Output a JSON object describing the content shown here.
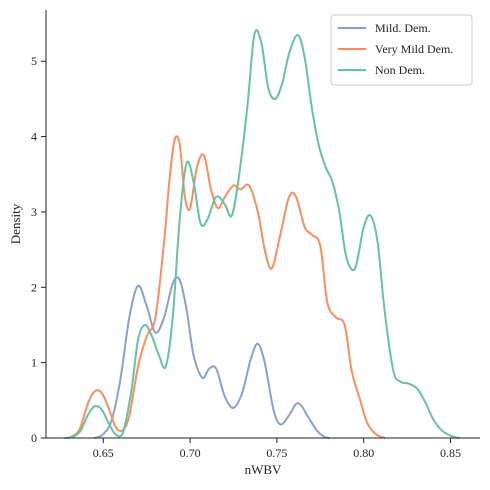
{
  "chart_data": {
    "type": "line",
    "title": "",
    "xlabel": "nWBV",
    "ylabel": "Density",
    "xlim": [
      0.617,
      0.867
    ],
    "ylim": [
      0,
      5.68
    ],
    "xticks": [
      0.65,
      0.7,
      0.75,
      0.8,
      0.85
    ],
    "xtick_labels": [
      "0.65",
      "0.70",
      "0.75",
      "0.80",
      "0.85"
    ],
    "yticks": [
      0,
      1,
      2,
      3,
      4,
      5
    ],
    "ytick_labels": [
      "0",
      "1",
      "2",
      "3",
      "4",
      "5"
    ],
    "grid": false,
    "legend_position": "top-right",
    "series": [
      {
        "name": "Mild. Dem.",
        "color": "#8da0cb",
        "x": [
          0.645,
          0.65,
          0.655,
          0.66,
          0.665,
          0.67,
          0.675,
          0.68,
          0.685,
          0.69,
          0.694,
          0.698,
          0.702,
          0.707,
          0.711,
          0.715,
          0.72,
          0.725,
          0.73,
          0.735,
          0.739,
          0.743,
          0.748,
          0.752,
          0.757,
          0.761,
          0.764,
          0.768,
          0.773,
          0.777,
          0.78
        ],
        "y": [
          0.0,
          0.05,
          0.25,
          0.8,
          1.6,
          2.02,
          1.75,
          1.4,
          1.6,
          2.05,
          2.1,
          1.7,
          1.1,
          0.8,
          0.92,
          0.92,
          0.55,
          0.4,
          0.6,
          1.05,
          1.25,
          1.0,
          0.38,
          0.18,
          0.3,
          0.45,
          0.43,
          0.28,
          0.1,
          0.02,
          0.0
        ]
      },
      {
        "name": "Very Mild Dem.",
        "color": "#fc8d62",
        "x": [
          0.63,
          0.636,
          0.641,
          0.645,
          0.649,
          0.653,
          0.657,
          0.661,
          0.665,
          0.67,
          0.675,
          0.68,
          0.685,
          0.688,
          0.691,
          0.694,
          0.697,
          0.7,
          0.704,
          0.708,
          0.712,
          0.716,
          0.72,
          0.725,
          0.729,
          0.734,
          0.739,
          0.743,
          0.747,
          0.752,
          0.757,
          0.761,
          0.766,
          0.77,
          0.775,
          0.779,
          0.784,
          0.789,
          0.793,
          0.798,
          0.802,
          0.807,
          0.812
        ],
        "y": [
          0.0,
          0.1,
          0.45,
          0.62,
          0.6,
          0.4,
          0.15,
          0.1,
          0.3,
          0.95,
          1.35,
          1.6,
          2.6,
          3.4,
          3.95,
          3.9,
          3.2,
          3.05,
          3.6,
          3.75,
          3.3,
          3.05,
          3.2,
          3.35,
          3.3,
          3.35,
          3.0,
          2.5,
          2.25,
          2.7,
          3.2,
          3.2,
          2.8,
          2.7,
          2.55,
          1.8,
          1.6,
          1.5,
          0.9,
          0.5,
          0.2,
          0.05,
          0.0
        ]
      },
      {
        "name": "Non Dem.",
        "color": "#66c2a5",
        "x": [
          0.628,
          0.633,
          0.637,
          0.641,
          0.645,
          0.649,
          0.653,
          0.657,
          0.661,
          0.666,
          0.67,
          0.674,
          0.678,
          0.682,
          0.686,
          0.69,
          0.694,
          0.698,
          0.702,
          0.706,
          0.71,
          0.715,
          0.72,
          0.724,
          0.728,
          0.733,
          0.737,
          0.741,
          0.745,
          0.749,
          0.753,
          0.757,
          0.762,
          0.766,
          0.77,
          0.774,
          0.778,
          0.782,
          0.786,
          0.79,
          0.795,
          0.8,
          0.804,
          0.808,
          0.812,
          0.817,
          0.821,
          0.826,
          0.831,
          0.836,
          0.84,
          0.845,
          0.85,
          0.855
        ],
        "y": [
          0.0,
          0.02,
          0.1,
          0.3,
          0.42,
          0.38,
          0.2,
          0.05,
          0.05,
          0.6,
          1.3,
          1.5,
          1.35,
          1.1,
          0.95,
          1.6,
          2.9,
          3.65,
          3.4,
          2.85,
          2.9,
          3.2,
          3.1,
          2.95,
          3.45,
          4.4,
          5.35,
          5.25,
          4.65,
          4.5,
          4.7,
          5.1,
          5.35,
          5.05,
          4.4,
          3.9,
          3.6,
          3.4,
          3.0,
          2.4,
          2.25,
          2.8,
          2.95,
          2.6,
          1.7,
          0.9,
          0.75,
          0.72,
          0.65,
          0.45,
          0.25,
          0.1,
          0.03,
          0.0
        ]
      }
    ]
  }
}
